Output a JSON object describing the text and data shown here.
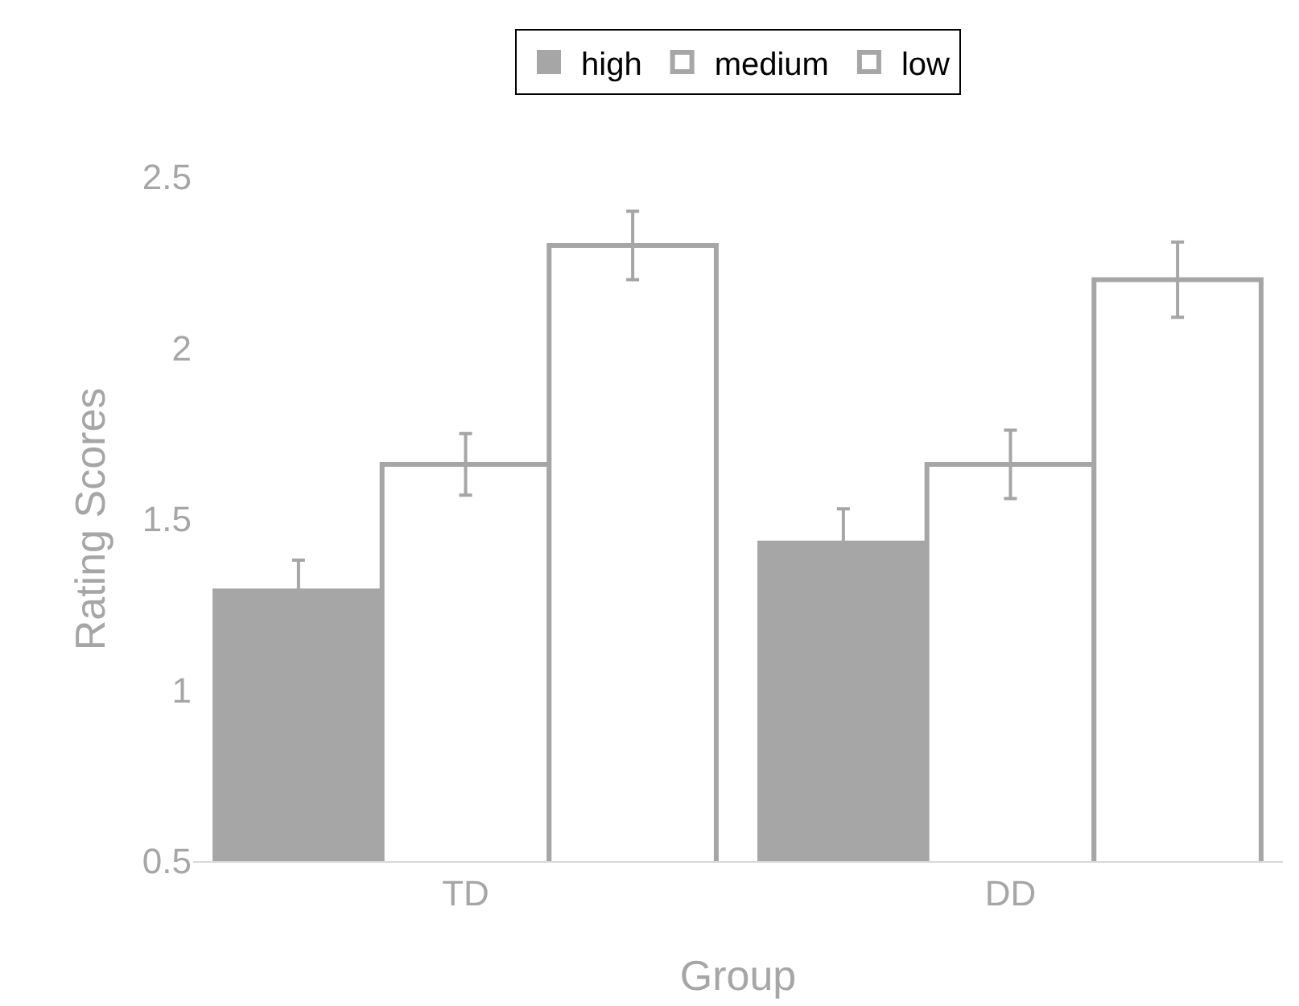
{
  "chart_data": {
    "type": "bar",
    "xlabel": "Group",
    "ylabel": "Rating Scores",
    "categories": [
      "TD",
      "DD"
    ],
    "series": [
      {
        "name": "high",
        "color": "#a6a6a6",
        "values": [
          1.29,
          1.43
        ],
        "errors": [
          0.09,
          0.1
        ]
      },
      {
        "name": "medium",
        "color": "#ffffff",
        "values": [
          1.66,
          1.66
        ],
        "errors": [
          0.09,
          0.1
        ]
      },
      {
        "name": "low",
        "color": "#ffffff",
        "values": [
          2.3,
          2.2
        ],
        "errors": [
          0.1,
          0.11
        ]
      }
    ],
    "ylim": [
      0.5,
      2.5
    ],
    "yticks": [
      0.5,
      1,
      1.5,
      2,
      2.5
    ],
    "legend": "top"
  }
}
